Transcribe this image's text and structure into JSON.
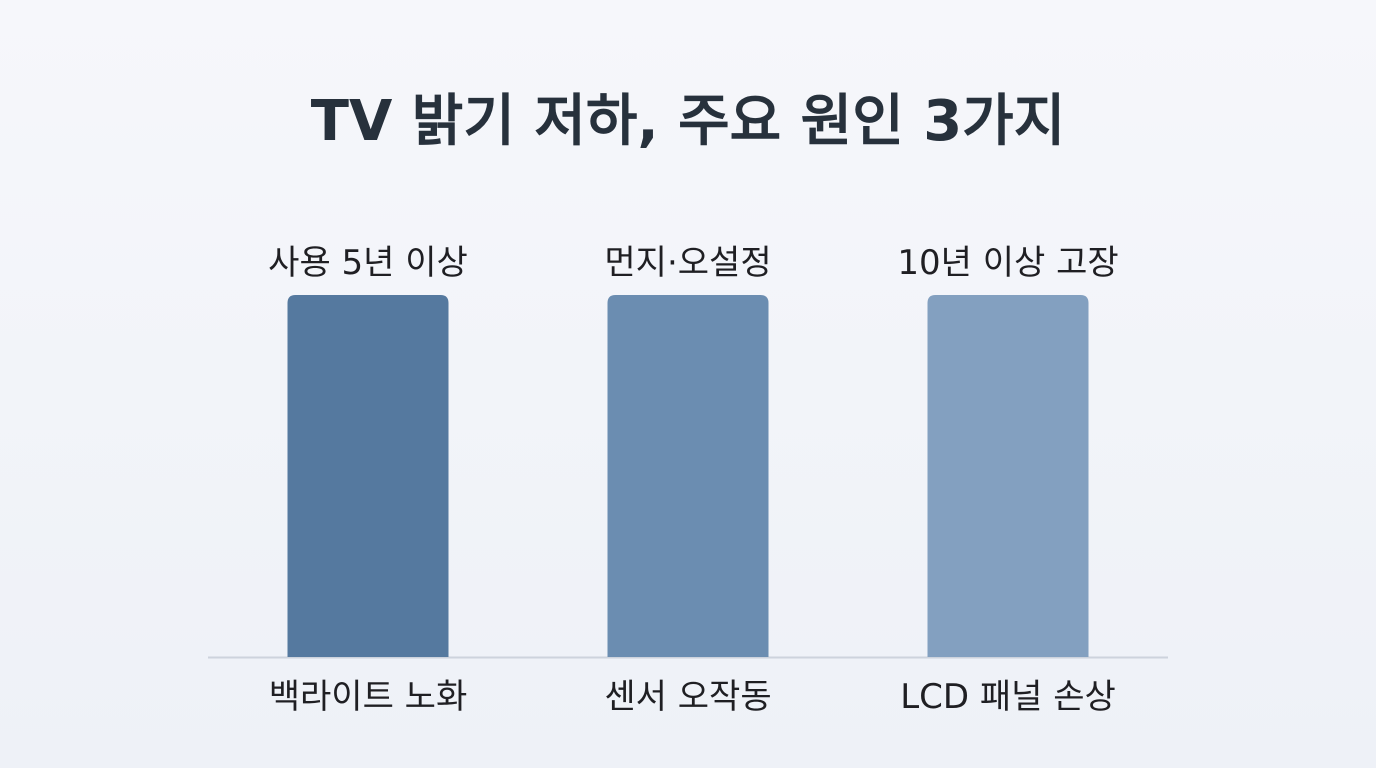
{
  "title": "TV 밝기 저하, 주요 원인 3가지",
  "chart_data": {
    "type": "bar",
    "categories": [
      "백라이트 노화",
      "센서 오작동",
      "LCD 패널 손상"
    ],
    "top_labels": [
      "사용 5년 이상",
      "먼지·오설정",
      "10년 이상 고장"
    ],
    "values": [
      1,
      1,
      1
    ],
    "ylim": [
      0,
      1
    ],
    "grid": false,
    "legend": "none",
    "colors": [
      "#55799f",
      "#6b8db1",
      "#83a0c0"
    ],
    "baseline_color": "#cdd3dd"
  }
}
